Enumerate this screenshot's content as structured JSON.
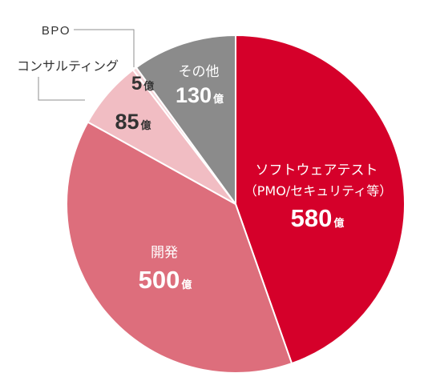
{
  "chart_data": {
    "type": "pie",
    "unit": "億",
    "slices": [
      {
        "label": [
          "ソフトウェアテスト",
          "（PMO/セキュリティ等）"
        ],
        "value": 580,
        "color": "#d5002a"
      },
      {
        "label": [
          "開発"
        ],
        "value": 500,
        "color": "#dd6e7c"
      },
      {
        "label": [
          "コンサルティング"
        ],
        "value": 85,
        "color": "#f1bdc3"
      },
      {
        "label": [
          "BPO"
        ],
        "value": 5,
        "color": "#f6d7db"
      },
      {
        "label": [
          "その他"
        ],
        "value": 130,
        "color": "#8b8b8b"
      }
    ]
  }
}
